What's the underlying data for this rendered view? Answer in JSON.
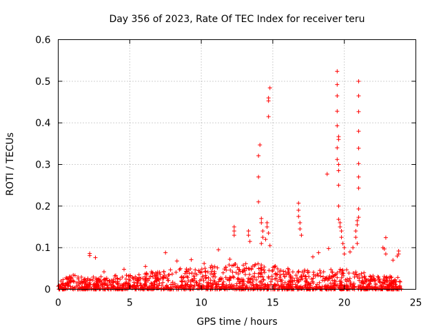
{
  "chart_data": {
    "type": "scatter",
    "title": "Day 356 of 2023, Rate Of TEC Index for receiver teru",
    "xlabel": "GPS time / hours",
    "ylabel": "ROTI / TECUs",
    "xlim": [
      0,
      25
    ],
    "ylim": [
      0,
      0.6
    ],
    "xticks": [
      "0",
      "5",
      "10",
      "15",
      "20",
      "25"
    ],
    "yticks": [
      "0",
      "0.1",
      "0.2",
      "0.3",
      "0.4",
      "0.5",
      "0.6"
    ],
    "grid": true,
    "marker": "+",
    "color": "#ff0000",
    "series": [
      {
        "name": "ROTI",
        "points": [
          [
            2.2,
            0.086
          ],
          [
            2.2,
            0.081
          ],
          [
            2.6,
            0.076
          ],
          [
            3.2,
            0.042
          ],
          [
            4.6,
            0.048
          ],
          [
            6.1,
            0.055
          ],
          [
            7.5,
            0.088
          ],
          [
            8.3,
            0.068
          ],
          [
            9.3,
            0.071
          ],
          [
            10.2,
            0.062
          ],
          [
            11.2,
            0.095
          ],
          [
            12.0,
            0.072
          ],
          [
            12.3,
            0.15
          ],
          [
            12.3,
            0.14
          ],
          [
            12.3,
            0.13
          ],
          [
            13.3,
            0.14
          ],
          [
            13.3,
            0.13
          ],
          [
            13.4,
            0.115
          ],
          [
            14.1,
            0.347
          ],
          [
            14.0,
            0.321
          ],
          [
            14.0,
            0.27
          ],
          [
            14.0,
            0.21
          ],
          [
            14.2,
            0.17
          ],
          [
            14.2,
            0.16
          ],
          [
            14.3,
            0.14
          ],
          [
            14.3,
            0.125
          ],
          [
            14.2,
            0.11
          ],
          [
            14.8,
            0.484
          ],
          [
            14.7,
            0.46
          ],
          [
            14.7,
            0.453
          ],
          [
            14.7,
            0.415
          ],
          [
            14.6,
            0.16
          ],
          [
            14.6,
            0.15
          ],
          [
            14.7,
            0.135
          ],
          [
            14.5,
            0.12
          ],
          [
            14.8,
            0.105
          ],
          [
            16.8,
            0.207
          ],
          [
            16.8,
            0.19
          ],
          [
            16.8,
            0.175
          ],
          [
            16.9,
            0.16
          ],
          [
            16.9,
            0.145
          ],
          [
            17.0,
            0.13
          ],
          [
            17.8,
            0.078
          ],
          [
            18.2,
            0.088
          ],
          [
            18.8,
            0.277
          ],
          [
            18.9,
            0.098
          ],
          [
            19.5,
            0.524
          ],
          [
            19.5,
            0.492
          ],
          [
            19.5,
            0.465
          ],
          [
            19.5,
            0.428
          ],
          [
            19.5,
            0.393
          ],
          [
            19.6,
            0.367
          ],
          [
            19.6,
            0.36
          ],
          [
            19.5,
            0.34
          ],
          [
            19.5,
            0.312
          ],
          [
            19.6,
            0.3
          ],
          [
            19.6,
            0.285
          ],
          [
            19.6,
            0.25
          ],
          [
            19.6,
            0.2
          ],
          [
            19.6,
            0.168
          ],
          [
            19.7,
            0.16
          ],
          [
            19.7,
            0.15
          ],
          [
            19.8,
            0.14
          ],
          [
            19.8,
            0.125
          ],
          [
            19.9,
            0.11
          ],
          [
            20.0,
            0.1
          ],
          [
            20.0,
            0.085
          ],
          [
            21.0,
            0.5
          ],
          [
            21.0,
            0.465
          ],
          [
            21.0,
            0.427
          ],
          [
            21.0,
            0.38
          ],
          [
            21.0,
            0.339
          ],
          [
            21.0,
            0.302
          ],
          [
            21.0,
            0.27
          ],
          [
            21.0,
            0.243
          ],
          [
            21.0,
            0.193
          ],
          [
            21.0,
            0.173
          ],
          [
            20.9,
            0.165
          ],
          [
            20.9,
            0.155
          ],
          [
            20.8,
            0.14
          ],
          [
            20.8,
            0.125
          ],
          [
            20.9,
            0.11
          ],
          [
            20.6,
            0.1
          ],
          [
            20.4,
            0.09
          ],
          [
            22.9,
            0.124
          ],
          [
            22.7,
            0.1
          ],
          [
            22.8,
            0.097
          ],
          [
            22.9,
            0.085
          ],
          [
            23.4,
            0.07
          ],
          [
            23.7,
            0.08
          ],
          [
            23.8,
            0.092
          ],
          [
            23.8,
            0.085
          ]
        ]
      }
    ]
  }
}
